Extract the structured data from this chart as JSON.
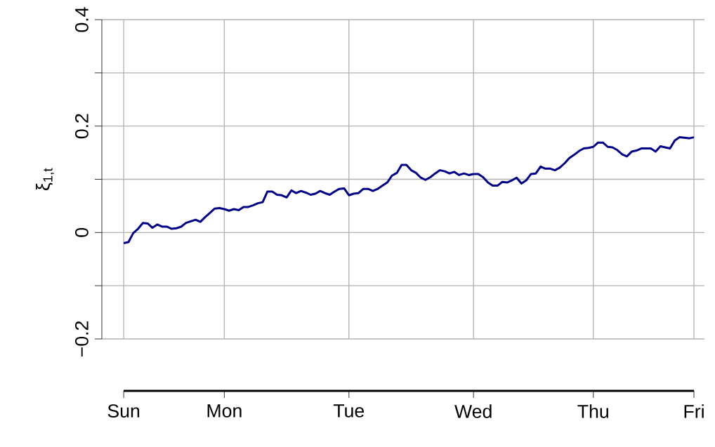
{
  "chart_data": {
    "type": "line",
    "ylabel": "ξ$_{1,t}$",
    "color": "#00008b",
    "line_style": "solid",
    "grid": true,
    "ylim": [
      -0.2,
      0.4
    ],
    "categories": [
      "Sun",
      null,
      null,
      null,
      null,
      null,
      null,
      null,
      null,
      null,
      null,
      null,
      null,
      null,
      null,
      null,
      null,
      null,
      null,
      null,
      null,
      "Mon",
      null,
      null,
      null,
      null,
      null,
      null,
      null,
      null,
      null,
      null,
      null,
      null,
      null,
      null,
      null,
      null,
      null,
      null,
      null,
      null,
      null,
      null,
      null,
      null,
      null,
      "Tue",
      null,
      null,
      null,
      null,
      null,
      null,
      null,
      null,
      null,
      null,
      null,
      null,
      null,
      null,
      null,
      null,
      null,
      null,
      null,
      null,
      null,
      null,
      null,
      null,
      null,
      "Wed",
      null,
      null,
      null,
      null,
      null,
      null,
      null,
      null,
      null,
      null,
      null,
      null,
      null,
      null,
      null,
      null,
      null,
      null,
      null,
      null,
      null,
      null,
      null,
      null,
      "Thu",
      null,
      null,
      null,
      null,
      null,
      null,
      null,
      null,
      null,
      null,
      null,
      null,
      null,
      null,
      null,
      null,
      null,
      null,
      null,
      null,
      "Fri"
    ],
    "yticks": [
      {
        "value": -0.2,
        "label": "−0.2"
      },
      {
        "value": -0.1,
        "label": null
      },
      0,
      {
        "value": 0.1,
        "label": null
      },
      0.2,
      {
        "value": 0.3,
        "label": null
      },
      0.4
    ],
    "values": [
      -0.02,
      -0.018,
      -0.001,
      0.007,
      0.018,
      0.017,
      0.009,
      0.015,
      0.011,
      0.011,
      0.007,
      0.008,
      0.011,
      0.018,
      0.021,
      0.024,
      0.02,
      0.029,
      0.037,
      0.045,
      0.046,
      0.044,
      0.041,
      0.044,
      0.042,
      0.048,
      0.048,
      0.051,
      0.055,
      0.057,
      0.077,
      0.077,
      0.071,
      0.07,
      0.066,
      0.079,
      0.074,
      0.078,
      0.075,
      0.071,
      0.073,
      0.078,
      0.074,
      0.071,
      0.077,
      0.082,
      0.083,
      0.07,
      0.073,
      0.074,
      0.082,
      0.082,
      0.078,
      0.082,
      0.088,
      0.094,
      0.107,
      0.112,
      0.127,
      0.127,
      0.117,
      0.112,
      0.103,
      0.099,
      0.104,
      0.111,
      0.117,
      0.115,
      0.111,
      0.114,
      0.108,
      0.111,
      0.108,
      0.11,
      0.11,
      0.104,
      0.094,
      0.088,
      0.088,
      0.095,
      0.094,
      0.098,
      0.103,
      0.092,
      0.098,
      0.11,
      0.111,
      0.124,
      0.12,
      0.12,
      0.117,
      0.122,
      0.13,
      0.14,
      0.146,
      0.153,
      0.158,
      0.159,
      0.161,
      0.169,
      0.169,
      0.161,
      0.16,
      0.155,
      0.147,
      0.143,
      0.152,
      0.154,
      0.158,
      0.158,
      0.158,
      0.152,
      0.162,
      0.16,
      0.158,
      0.173,
      0.179,
      0.178,
      0.177,
      0.179
    ]
  }
}
